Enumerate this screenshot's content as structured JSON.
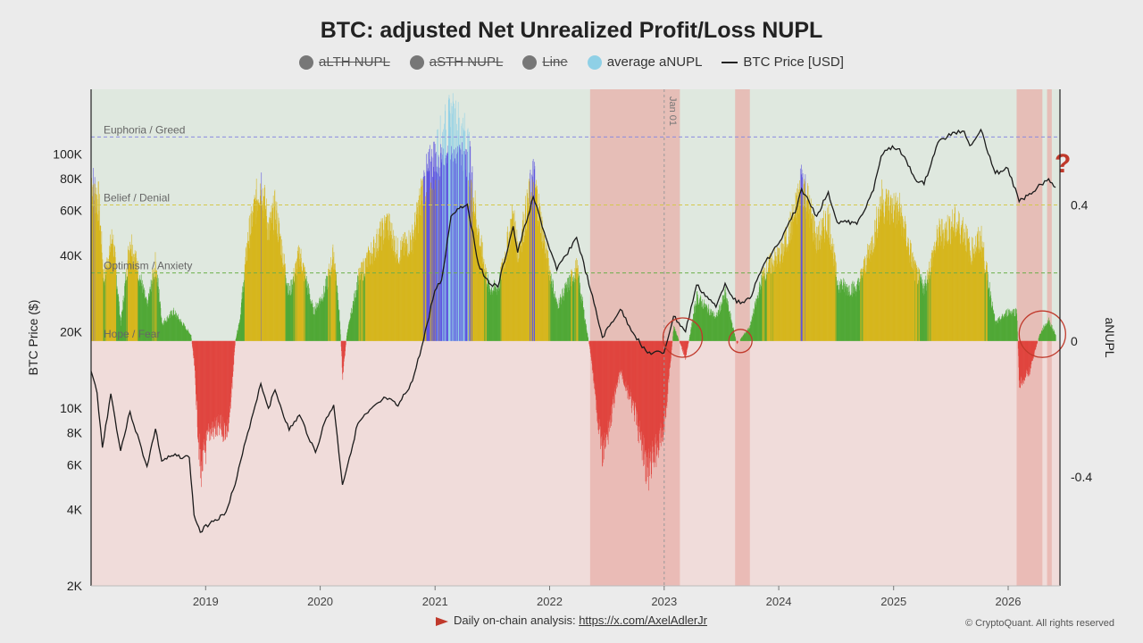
{
  "chart_data": {
    "type": "bar",
    "title": "BTC: adjusted Net Unrealized Profit/Loss NUPL",
    "ylabel_left": "BTC Price ($)",
    "ylabel_right": "aNUPL",
    "x_ticks": [
      "2019",
      "2020",
      "2021",
      "2022",
      "2023",
      "2024",
      "2025",
      "2026"
    ],
    "y_left_ticks": [
      "100K",
      "80K",
      "60K",
      "40K",
      "20K",
      "10K",
      "8K",
      "6K",
      "4K",
      "2K"
    ],
    "y_left_scale": "log",
    "y_left_range": [
      2000,
      180000
    ],
    "y_right_ticks": [
      "0.4",
      "0",
      "-0.4"
    ],
    "y_right_range": [
      -0.72,
      0.74
    ],
    "x_range": [
      "2018-01-01",
      "2026-06-15"
    ],
    "zones": [
      {
        "label": "Euphoria / Greed",
        "value": 0.6,
        "color": "#8a8ae0"
      },
      {
        "label": "Belief / Denial",
        "value": 0.4,
        "color": "#d4c84a"
      },
      {
        "label": "Optimism / Anxiety",
        "value": 0.2,
        "color": "#6cae4a"
      },
      {
        "label": "Hope / Fear",
        "value": 0.0,
        "color": "#999999"
      }
    ],
    "annotation_jan01": "Jan 01",
    "question_mark": "?",
    "legend": [
      {
        "label": "aLTH NUPL",
        "visible": false,
        "color": "#777777",
        "kind": "dot"
      },
      {
        "label": "aSTH NUPL",
        "visible": false,
        "color": "#777777",
        "kind": "dot"
      },
      {
        "label": "Line",
        "visible": false,
        "color": "#777777",
        "kind": "dot"
      },
      {
        "label": "average aNUPL",
        "visible": true,
        "color": "#8fd0e6",
        "kind": "dot"
      },
      {
        "label": "BTC Price [USD]",
        "visible": true,
        "color": "#222222",
        "kind": "line"
      }
    ],
    "colors": {
      "red": "#e0403a",
      "green": "#4ba630",
      "yellow": "#d6b416",
      "blue": "#5a4fe0",
      "lightblue": "#8fd0e6",
      "bg_pos": "#dfe8df",
      "bg_neg": "#f0dcda",
      "shade": "#e8b0aa"
    },
    "shaded_periods": [
      [
        "2022-05-10",
        "2023-02-20"
      ],
      [
        "2023-08-15",
        "2023-10-01"
      ],
      [
        "2026-01-28",
        "2026-04-20"
      ],
      [
        "2026-05-05",
        "2026-05-20"
      ]
    ],
    "circles": [
      {
        "date": "2023-03-01",
        "anupl": 0.01
      },
      {
        "date": "2023-09-01",
        "anupl": 0.0
      },
      {
        "date": "2026-04-20",
        "anupl": 0.02
      }
    ],
    "price_series": [
      [
        "2018-01-01",
        14000
      ],
      [
        "2018-01-20",
        11500
      ],
      [
        "2018-02-06",
        7000
      ],
      [
        "2018-03-05",
        11400
      ],
      [
        "2018-04-05",
        6800
      ],
      [
        "2018-05-05",
        9700
      ],
      [
        "2018-06-28",
        5900
      ],
      [
        "2018-07-25",
        8300
      ],
      [
        "2018-08-14",
        6200
      ],
      [
        "2018-09-20",
        6500
      ],
      [
        "2018-11-10",
        6400
      ],
      [
        "2018-11-25",
        3800
      ],
      [
        "2018-12-15",
        3250
      ],
      [
        "2019-01-20",
        3600
      ],
      [
        "2019-03-01",
        3800
      ],
      [
        "2019-04-05",
        5000
      ],
      [
        "2019-05-15",
        8000
      ],
      [
        "2019-06-26",
        12500
      ],
      [
        "2019-07-20",
        10000
      ],
      [
        "2019-08-10",
        11800
      ],
      [
        "2019-09-24",
        8200
      ],
      [
        "2019-10-27",
        9400
      ],
      [
        "2019-12-17",
        6700
      ],
      [
        "2020-01-15",
        8800
      ],
      [
        "2020-02-13",
        10300
      ],
      [
        "2020-03-12",
        5000
      ],
      [
        "2020-04-30",
        8700
      ],
      [
        "2020-06-01",
        9600
      ],
      [
        "2020-07-28",
        11000
      ],
      [
        "2020-09-05",
        10200
      ],
      [
        "2020-10-21",
        12800
      ],
      [
        "2020-11-25",
        18500
      ],
      [
        "2020-12-31",
        29000
      ],
      [
        "2021-01-22",
        32000
      ],
      [
        "2021-02-21",
        57000
      ],
      [
        "2021-03-13",
        61000
      ],
      [
        "2021-04-14",
        63500
      ],
      [
        "2021-05-19",
        37000
      ],
      [
        "2021-06-22",
        31000
      ],
      [
        "2021-07-20",
        30000
      ],
      [
        "2021-09-07",
        52000
      ],
      [
        "2021-09-21",
        41000
      ],
      [
        "2021-11-10",
        68000
      ],
      [
        "2021-12-20",
        47000
      ],
      [
        "2022-01-24",
        35000
      ],
      [
        "2022-03-28",
        47000
      ],
      [
        "2022-05-12",
        29000
      ],
      [
        "2022-06-18",
        19000
      ],
      [
        "2022-08-14",
        24500
      ],
      [
        "2022-09-30",
        19300
      ],
      [
        "2022-11-09",
        16500
      ],
      [
        "2022-12-31",
        16500
      ],
      [
        "2023-01-31",
        23000
      ],
      [
        "2023-03-10",
        20000
      ],
      [
        "2023-04-14",
        30500
      ],
      [
        "2023-06-15",
        25000
      ],
      [
        "2023-07-14",
        31000
      ],
      [
        "2023-08-20",
        26000
      ],
      [
        "2023-10-01",
        27000
      ],
      [
        "2023-11-15",
        37000
      ],
      [
        "2024-01-11",
        46500
      ],
      [
        "2024-02-28",
        62000
      ],
      [
        "2024-03-14",
        73000
      ],
      [
        "2024-05-01",
        57000
      ],
      [
        "2024-06-07",
        71000
      ],
      [
        "2024-07-05",
        54000
      ],
      [
        "2024-08-05",
        54000
      ],
      [
        "2024-09-06",
        53000
      ],
      [
        "2024-10-29",
        72000
      ],
      [
        "2024-11-22",
        98000
      ],
      [
        "2024-12-17",
        106000
      ],
      [
        "2025-01-20",
        105000
      ],
      [
        "2025-03-10",
        80000
      ],
      [
        "2025-04-08",
        76000
      ],
      [
        "2025-05-22",
        111000
      ],
      [
        "2025-07-14",
        122000
      ],
      [
        "2025-08-14",
        123000
      ],
      [
        "2025-09-01",
        108000
      ],
      [
        "2025-10-06",
        125000
      ],
      [
        "2025-11-21",
        84000
      ],
      [
        "2025-12-31",
        88000
      ],
      [
        "2026-02-05",
        65000
      ],
      [
        "2026-03-10",
        70000
      ],
      [
        "2026-04-15",
        76000
      ],
      [
        "2026-05-10",
        80000
      ],
      [
        "2026-06-01",
        74000
      ]
    ],
    "anupl_series_desc": "colored bars by zone",
    "anupl_keypoints": [
      [
        "2018-01-01",
        0.55
      ],
      [
        "2018-01-25",
        0.47
      ],
      [
        "2018-02-10",
        0.21
      ],
      [
        "2018-03-10",
        0.36
      ],
      [
        "2018-04-05",
        0.06
      ],
      [
        "2018-05-05",
        0.35
      ],
      [
        "2018-06-28",
        0.12
      ],
      [
        "2018-07-25",
        0.27
      ],
      [
        "2018-08-15",
        0.06
      ],
      [
        "2018-09-20",
        0.1
      ],
      [
        "2018-11-15",
        0.02
      ],
      [
        "2018-11-25",
        -0.08
      ],
      [
        "2018-12-15",
        -0.45
      ],
      [
        "2019-01-15",
        -0.3
      ],
      [
        "2019-03-15",
        -0.3
      ],
      [
        "2019-04-05",
        0.0
      ],
      [
        "2019-04-20",
        0.08
      ],
      [
        "2019-05-15",
        0.35
      ],
      [
        "2019-06-26",
        0.55
      ],
      [
        "2019-07-20",
        0.38
      ],
      [
        "2019-08-10",
        0.45
      ],
      [
        "2019-09-24",
        0.16
      ],
      [
        "2019-10-27",
        0.3
      ],
      [
        "2019-12-10",
        0.1
      ],
      [
        "2020-01-15",
        0.17
      ],
      [
        "2020-02-13",
        0.3
      ],
      [
        "2020-03-01",
        0.1
      ],
      [
        "2020-03-12",
        -0.12
      ],
      [
        "2020-03-25",
        0.02
      ],
      [
        "2020-04-30",
        0.21
      ],
      [
        "2020-06-01",
        0.28
      ],
      [
        "2020-08-01",
        0.4
      ],
      [
        "2020-09-05",
        0.3
      ],
      [
        "2020-10-21",
        0.35
      ],
      [
        "2020-11-25",
        0.53
      ],
      [
        "2020-12-31",
        0.62
      ],
      [
        "2021-01-22",
        0.68
      ],
      [
        "2021-02-21",
        0.74
      ],
      [
        "2021-03-13",
        0.72
      ],
      [
        "2021-04-14",
        0.66
      ],
      [
        "2021-05-19",
        0.36
      ],
      [
        "2021-06-22",
        0.18
      ],
      [
        "2021-07-20",
        0.18
      ],
      [
        "2021-09-07",
        0.43
      ],
      [
        "2021-09-21",
        0.3
      ],
      [
        "2021-11-10",
        0.56
      ],
      [
        "2021-12-20",
        0.3
      ],
      [
        "2022-01-24",
        0.12
      ],
      [
        "2022-03-28",
        0.25
      ],
      [
        "2022-05-12",
        -0.05
      ],
      [
        "2022-06-18",
        -0.4
      ],
      [
        "2022-08-14",
        -0.1
      ],
      [
        "2022-09-30",
        -0.25
      ],
      [
        "2022-11-09",
        -0.45
      ],
      [
        "2022-12-31",
        -0.3
      ],
      [
        "2023-01-31",
        0.05
      ],
      [
        "2023-03-10",
        -0.06
      ],
      [
        "2023-04-14",
        0.15
      ],
      [
        "2023-06-15",
        0.08
      ],
      [
        "2023-07-14",
        0.16
      ],
      [
        "2023-08-20",
        -0.01
      ],
      [
        "2023-10-01",
        0.05
      ],
      [
        "2023-11-15",
        0.24
      ],
      [
        "2024-01-11",
        0.3
      ],
      [
        "2024-02-28",
        0.46
      ],
      [
        "2024-03-14",
        0.56
      ],
      [
        "2024-05-01",
        0.34
      ],
      [
        "2024-06-07",
        0.42
      ],
      [
        "2024-07-05",
        0.2
      ],
      [
        "2024-08-05",
        0.18
      ],
      [
        "2024-09-06",
        0.18
      ],
      [
        "2024-10-29",
        0.35
      ],
      [
        "2024-11-22",
        0.48
      ],
      [
        "2024-12-17",
        0.46
      ],
      [
        "2025-01-20",
        0.44
      ],
      [
        "2025-03-10",
        0.24
      ],
      [
        "2025-04-08",
        0.18
      ],
      [
        "2025-05-22",
        0.36
      ],
      [
        "2025-07-14",
        0.4
      ],
      [
        "2025-08-14",
        0.38
      ],
      [
        "2025-09-01",
        0.3
      ],
      [
        "2025-10-06",
        0.35
      ],
      [
        "2025-11-21",
        0.06
      ],
      [
        "2025-12-31",
        0.1
      ],
      [
        "2026-01-28",
        0.1
      ],
      [
        "2026-02-05",
        -0.15
      ],
      [
        "2026-03-10",
        -0.1
      ],
      [
        "2026-04-10",
        0.02
      ],
      [
        "2026-04-25",
        0.05
      ],
      [
        "2026-05-10",
        0.07
      ],
      [
        "2026-06-01",
        0.02
      ]
    ]
  },
  "footer": {
    "text": "Daily on-chain analysis: ",
    "link": "https://x.com/AxelAdlerJr",
    "copyright": "© CryptoQuant. All rights reserved"
  }
}
